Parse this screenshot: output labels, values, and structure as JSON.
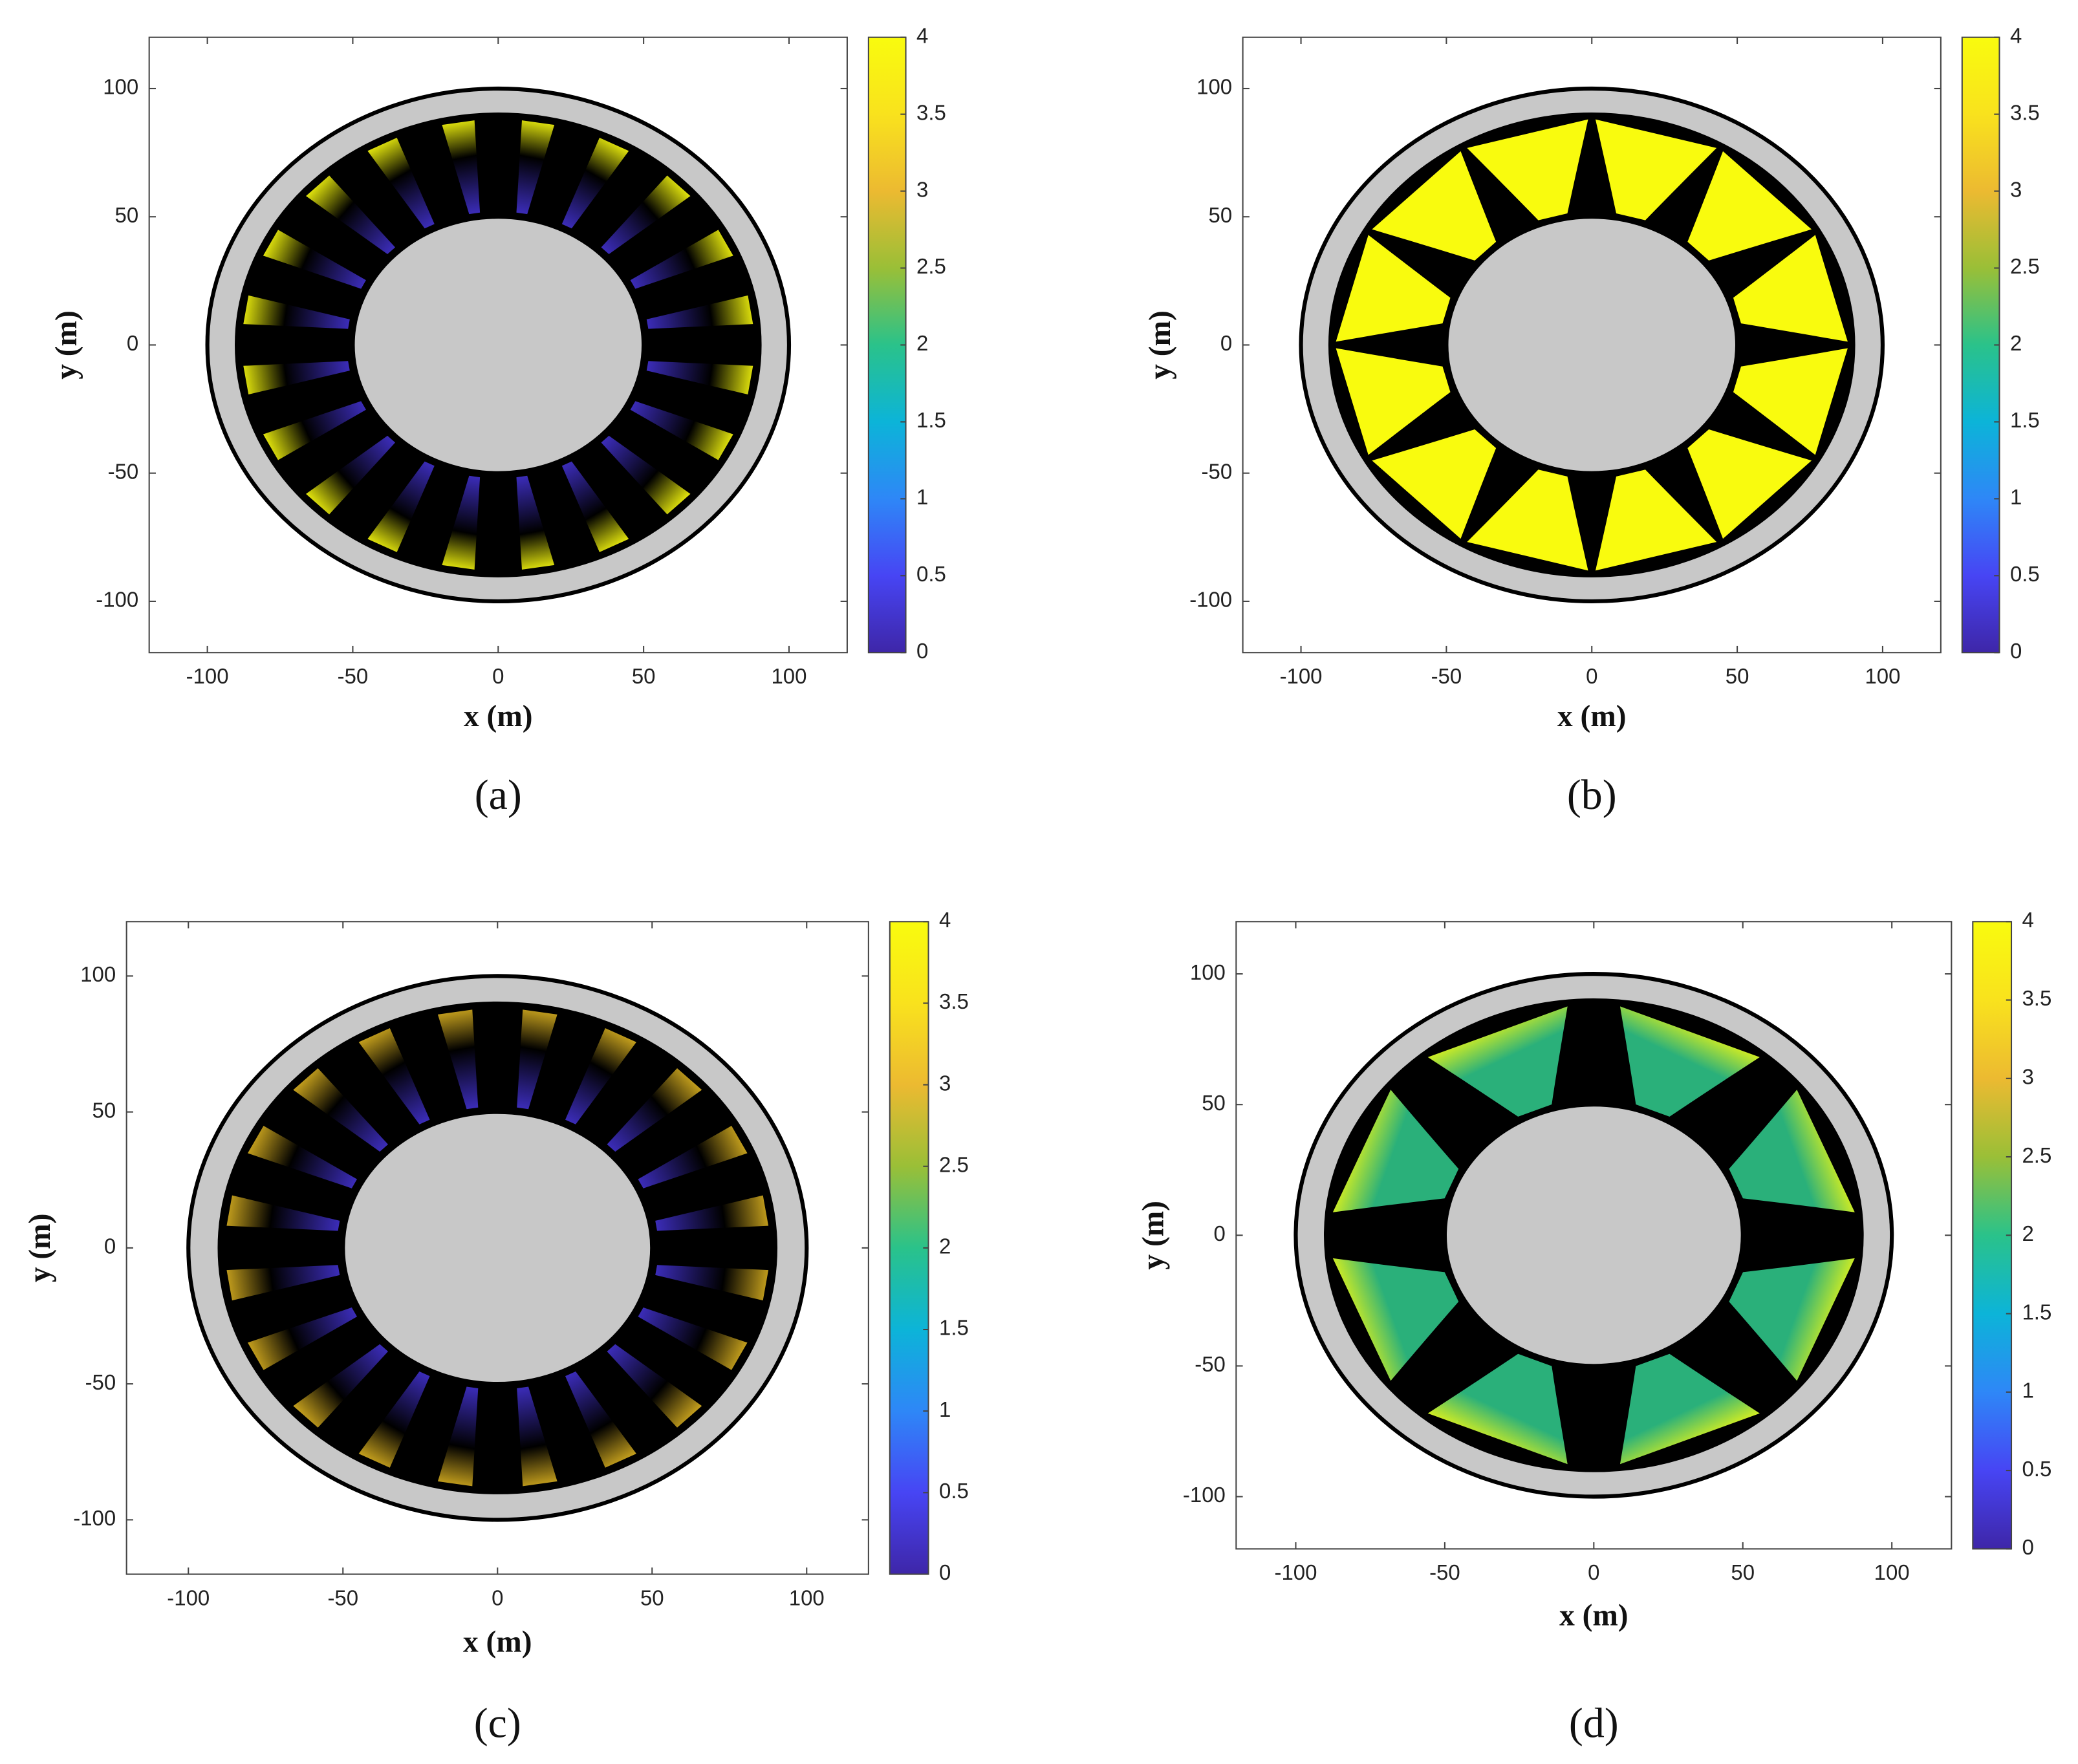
{
  "chart_data": [
    {
      "type": "contour",
      "label": "(a)",
      "xlabel": "x (m)",
      "ylabel": "y (m)",
      "xlim": [
        -120,
        120
      ],
      "ylim": [
        -120,
        120
      ],
      "xticks": [
        -100,
        -50,
        0,
        50,
        100
      ],
      "yticks": [
        -100,
        -50,
        0,
        50,
        100
      ],
      "clim": [
        0,
        4
      ],
      "cticks": [
        0,
        0.5,
        1,
        1.5,
        2,
        2.5,
        3,
        3.5,
        4
      ],
      "colormap": [
        "#3e26a8",
        "#4745f4",
        "#2e87f7",
        "#0cb4d8",
        "#2ac28a",
        "#9abf37",
        "#ecba31",
        "#f9e21d",
        "#f9fb0e"
      ],
      "rings": {
        "inner": 50,
        "channel": 90,
        "outer": 100
      },
      "field": {
        "lobes": 20,
        "lobe_width": 4,
        "inner_color": "#4030c8",
        "tip_color": "#f9fb0e"
      }
    },
    {
      "type": "contour",
      "label": "(b)",
      "xlabel": "x (m)",
      "ylabel": "y (m)",
      "xlim": [
        -120,
        120
      ],
      "ylim": [
        -120,
        120
      ],
      "xticks": [
        -100,
        -50,
        0,
        50,
        100
      ],
      "yticks": [
        -100,
        -50,
        0,
        50,
        100
      ],
      "clim": [
        0,
        4
      ],
      "cticks": [
        0,
        0.5,
        1,
        1.5,
        2,
        2.5,
        3,
        3.5,
        4
      ],
      "colormap": [
        "#3e26a8",
        "#4745f4",
        "#2e87f7",
        "#0cb4d8",
        "#2ac28a",
        "#9abf37",
        "#ecba31",
        "#f9e21d",
        "#f9fb0e"
      ],
      "rings": {
        "inner": 50,
        "channel": 90,
        "outer": 100
      },
      "field": {
        "lobes": 12,
        "lobe_width": 11,
        "inner_color": "#f9fb0e",
        "tip_color": "#f9fb0e"
      }
    },
    {
      "type": "contour",
      "label": "(c)",
      "xlabel": "x (m)",
      "ylabel": "y (m)",
      "xlim": [
        -120,
        120
      ],
      "ylim": [
        -120,
        120
      ],
      "xticks": [
        -100,
        -50,
        0,
        50,
        100
      ],
      "yticks": [
        -100,
        -50,
        0,
        50,
        100
      ],
      "clim": [
        0,
        4
      ],
      "cticks": [
        0,
        0.5,
        1,
        1.5,
        2,
        2.5,
        3,
        3.5,
        4
      ],
      "colormap": [
        "#3e26a8",
        "#4745f4",
        "#2e87f7",
        "#0cb4d8",
        "#2ac28a",
        "#9abf37",
        "#ecba31",
        "#f9e21d",
        "#f9fb0e"
      ],
      "rings": {
        "inner": 50,
        "channel": 90,
        "outer": 100
      },
      "field": {
        "lobes": 20,
        "lobe_width": 4,
        "inner_color": "#4030c8",
        "tip_color": "#d9b020"
      }
    },
    {
      "type": "contour",
      "label": "(d)",
      "xlabel": "x (m)",
      "ylabel": "y (m)",
      "xlim": [
        -120,
        120
      ],
      "ylim": [
        -120,
        120
      ],
      "xticks": [
        -100,
        -50,
        0,
        50,
        100
      ],
      "yticks": [
        -100,
        -50,
        0,
        50,
        100
      ],
      "clim": [
        0,
        4
      ],
      "cticks": [
        0,
        0.5,
        1,
        1.5,
        2,
        2.5,
        3,
        3.5,
        4
      ],
      "colormap": [
        "#3e26a8",
        "#4745f4",
        "#2e87f7",
        "#0cb4d8",
        "#2ac28a",
        "#9abf37",
        "#ecba31",
        "#f9e21d",
        "#f9fb0e"
      ],
      "rings": {
        "inner": 50,
        "channel": 90,
        "outer": 100
      },
      "field": {
        "lobes": 8,
        "lobe_width": 13,
        "inner_color": "#2ab07a",
        "tip_color": "#f9fb0e"
      }
    }
  ]
}
